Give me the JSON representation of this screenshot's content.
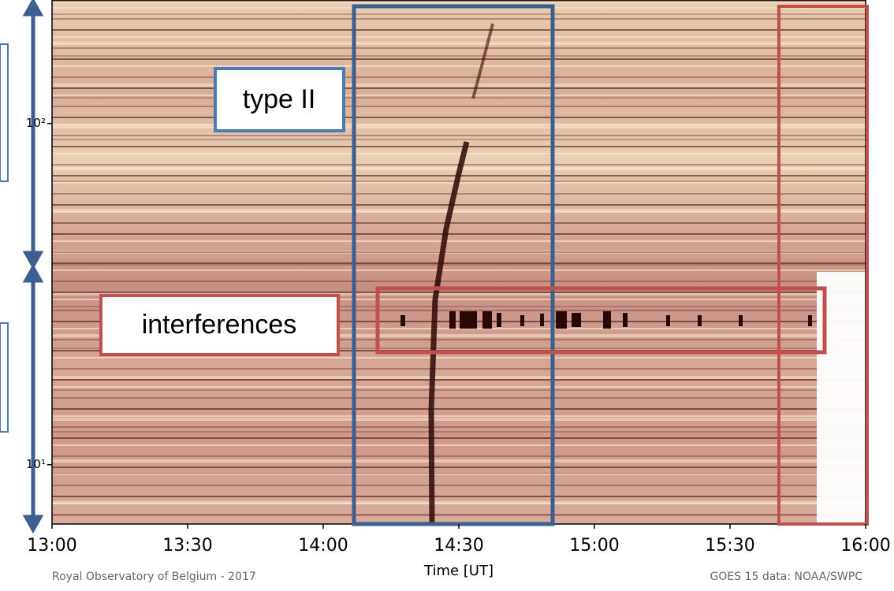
{
  "chart_data": {
    "type": "spectrogram",
    "xlabel": "Time [UT]",
    "xlim": [
      13,
      16
    ],
    "xticks": [
      {
        "value": 13,
        "label": "13:00"
      },
      {
        "value": 13.5,
        "label": "13:30"
      },
      {
        "value": 14,
        "label": "14:00"
      },
      {
        "value": 14.5,
        "label": "14:30"
      },
      {
        "value": 15,
        "label": "15:00"
      },
      {
        "value": 15.5,
        "label": "15:30"
      },
      {
        "value": 16,
        "label": "16:00"
      }
    ],
    "log_y": true,
    "ylim": [
      6.7,
      230
    ],
    "yticks": [
      {
        "value": 100,
        "label": "10²"
      },
      {
        "value": 10,
        "label": "10¹"
      }
    ],
    "annotations": [
      "type II",
      "interferences"
    ],
    "credits": [
      "Royal Observatory of Belgium - 2017",
      "GOES 15 data: NOAA/SWPC"
    ]
  }
}
